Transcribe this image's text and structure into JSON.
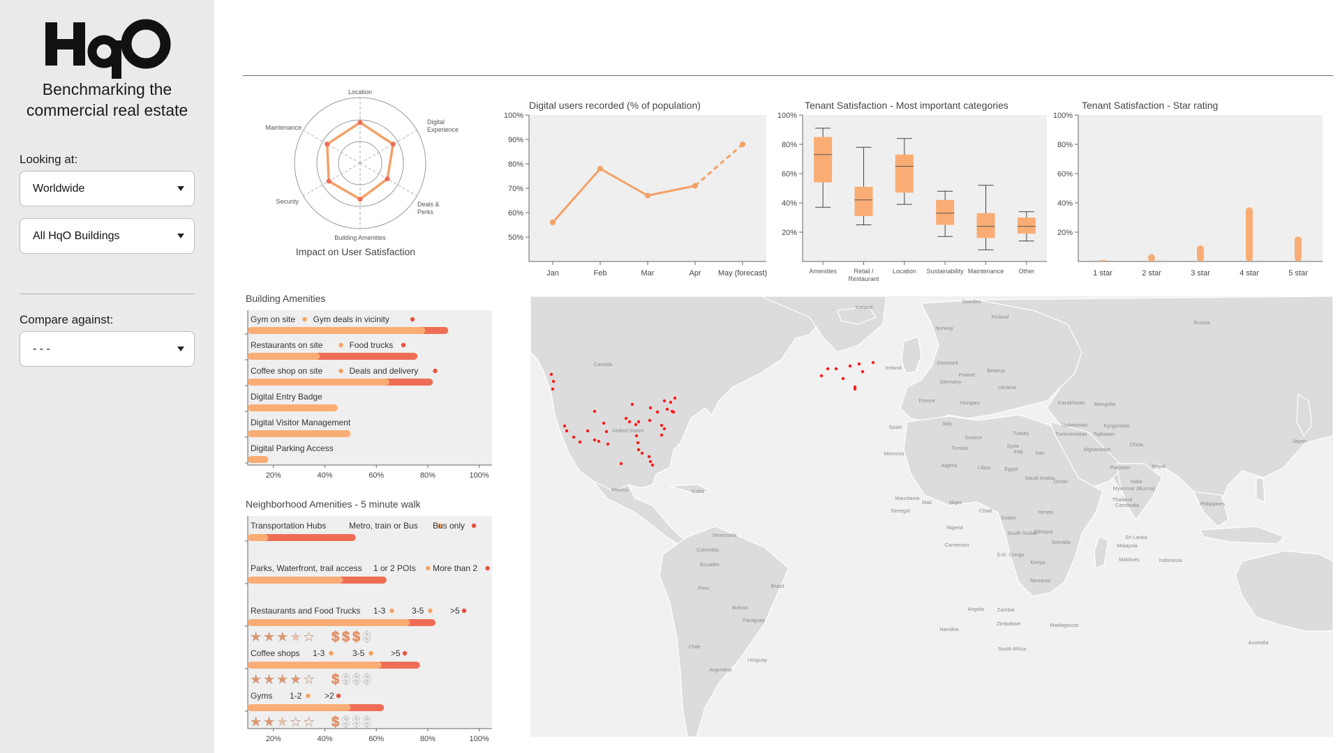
{
  "sidebar": {
    "logo_text": "HqO",
    "tagline_line1": "Benchmarking the",
    "tagline_line2": "commercial real estate",
    "looking_at_label": "Looking at:",
    "region_select": "Worldwide",
    "building_select": "All HqO Buildings",
    "compare_label": "Compare against:",
    "compare_select": "- - -"
  },
  "radar": {
    "title": "Impact on User Satisfaction",
    "axes": [
      "Location",
      "Digital Experience",
      "Deals & Perks",
      "Building Amenities",
      "Security",
      "Maintenance"
    ],
    "values": [
      0.62,
      0.58,
      0.48,
      0.55,
      0.55,
      0.58
    ],
    "color": "#f4a066"
  },
  "chart_data": [
    {
      "type": "line",
      "title": "Digital users recorded (% of population)",
      "categories": [
        "Jan",
        "Feb",
        "Mar",
        "Apr",
        "May (forecast)"
      ],
      "values": [
        56,
        78,
        67,
        71,
        88
      ],
      "forecast_from_index": 3,
      "yticks": [
        "100%",
        "90%",
        "80%",
        "70%",
        "60%",
        "50%"
      ],
      "ylim": [
        40,
        100
      ],
      "color": "#f4a066"
    },
    {
      "type": "box",
      "title": "Tenant Satisfaction - Most important categories",
      "categories": [
        "Amenities",
        "Retail / Restaurant",
        "Location",
        "Sustainability",
        "Maintenance",
        "Other"
      ],
      "boxes": [
        {
          "min": 37,
          "q1": 54,
          "median": 73,
          "q3": 85,
          "max": 91
        },
        {
          "min": 25,
          "q1": 31,
          "median": 42,
          "q3": 51,
          "max": 78
        },
        {
          "min": 39,
          "q1": 47,
          "median": 65,
          "q3": 73,
          "max": 84
        },
        {
          "min": 17,
          "q1": 25,
          "median": 33,
          "q3": 42,
          "max": 48
        },
        {
          "min": 8,
          "q1": 16,
          "median": 24,
          "q3": 33,
          "max": 52
        },
        {
          "min": 14,
          "q1": 19,
          "median": 24,
          "q3": 30,
          "max": 34
        }
      ],
      "yticks": [
        "100%",
        "80%",
        "60%",
        "40%",
        "20%"
      ],
      "ylim": [
        0,
        100
      ],
      "color": "#f9ad74"
    },
    {
      "type": "bar",
      "title": "Tenant Satisfaction - Star rating",
      "categories": [
        "1 star",
        "2 star",
        "3 star",
        "4 star",
        "5 star"
      ],
      "values": [
        1,
        5,
        11,
        37,
        17
      ],
      "yticks": [
        "100%",
        "80%",
        "60%",
        "40%",
        "20%"
      ],
      "ylim": [
        0,
        100
      ],
      "color": "#f9ad74"
    }
  ],
  "building_amenities": {
    "title": "Building Amenities",
    "xticks": [
      "20%",
      "40%",
      "60%",
      "80%",
      "100%"
    ],
    "rows": [
      {
        "label": "Gym on site",
        "second": "Gym deals in vicinity",
        "short": 0.79,
        "long": 0.88
      },
      {
        "label": "Restaurants on site",
        "second": "Food trucks",
        "short": 0.38,
        "long": 0.76
      },
      {
        "label": "Coffee shop on site",
        "second": "Deals and delivery",
        "short": 0.65,
        "long": 0.82
      },
      {
        "label": "Digital Entry Badge",
        "second": "",
        "short": 0.45,
        "long": 0
      },
      {
        "label": "Digital Visitor Management",
        "second": "",
        "short": 0.5,
        "long": 0
      },
      {
        "label": "Digital Parking Access",
        "second": "",
        "short": 0.18,
        "long": 0
      }
    ]
  },
  "neighborhood": {
    "title": "Neighborhood Amenities - 5 minute walk",
    "xticks": [
      "20%",
      "40%",
      "60%",
      "80%",
      "100%"
    ],
    "rows": [
      {
        "label": "Transportation Hubs",
        "tags": [
          "Metro, train or Bus",
          "Bus only"
        ],
        "short": 0.18,
        "long": 0.52,
        "stars": 0,
        "dollars": 0
      },
      {
        "label": "Parks, Waterfront, trail access",
        "tags": [
          "1 or 2 POIs",
          "More than 2"
        ],
        "short": 0.47,
        "long": 0.64,
        "stars": 0,
        "dollars": 0
      },
      {
        "label": "Restaurants and Food Trucks",
        "tags": [
          "1-3",
          "3-5",
          ">5"
        ],
        "short": 0.73,
        "long": 0.83,
        "stars": 3.5,
        "dollars": 3
      },
      {
        "label": "Coffee shops",
        "tags": [
          "1-3",
          "3-5",
          ">5"
        ],
        "short": 0.62,
        "long": 0.77,
        "stars": 4,
        "dollars": 1
      },
      {
        "label": "Gyms",
        "tags": [
          "1-2",
          ">2"
        ],
        "short": 0.5,
        "long": 0.63,
        "stars": 2.5,
        "dollars": 1
      }
    ]
  },
  "map": {
    "labels": [
      "Iceland",
      "Sweden",
      "Finland",
      "Norway",
      "Russia",
      "Denmark",
      "Ireland",
      "Poland",
      "Belarus",
      "Germany",
      "Ukraine",
      "France",
      "Hungary",
      "Kazakhstan",
      "Mongolia",
      "Canada",
      "United States",
      "Spain",
      "Italy",
      "Turkey",
      "Uzbekistan",
      "Kyrgyzstan",
      "Turkmenistan",
      "Tajikistan",
      "Greece",
      "Syria",
      "Iraq",
      "Iran",
      "Afghanistan",
      "China",
      "Japan",
      "Pakistan",
      "Nepal",
      "India",
      "Morocco",
      "Tunisia",
      "Algeria",
      "Libya",
      "Egypt",
      "Saudi Arabia",
      "Oman",
      "Myanmar (Burma)",
      "Thailand",
      "Cambodia",
      "Philippines",
      "Mexico",
      "Cuba",
      "Mauritania",
      "Mali",
      "Niger",
      "Chad",
      "Sudan",
      "Yemen",
      "Senegal",
      "Nigeria",
      "South Sudan",
      "Ethiopia",
      "Somalia",
      "Sri Lanka",
      "Malaysia",
      "Maldives",
      "Indonesia",
      "Venezuela",
      "Colombia",
      "Cameroon",
      "Democratic Republic of the Congo",
      "Kenya",
      "Ecuador",
      "Peru",
      "Brazil",
      "Tanzania",
      "Angola",
      "Zambia",
      "Bolivia",
      "Namibia",
      "Zimbabwe",
      "Madagascar",
      "Paraguay",
      "Chile",
      "Uruguay",
      "South Africa",
      "Argentina",
      "Australia"
    ]
  }
}
